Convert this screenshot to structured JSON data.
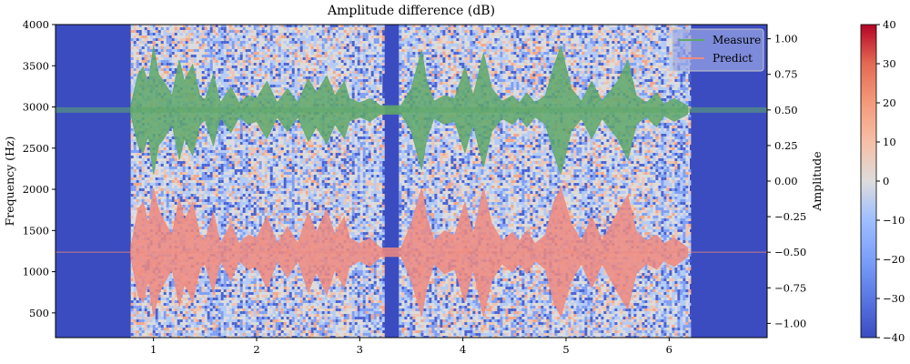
{
  "chart_data": {
    "type": "heatmap",
    "title": "Amplitude difference (dB)",
    "xlabel": "",
    "ylabel": "Frequency (Hz)",
    "y2label": "Amplitude",
    "xlim": [
      0.05,
      6.95
    ],
    "ylim": [
      200,
      4000
    ],
    "y2lim": [
      -1.1,
      1.1
    ],
    "x_ticks": [
      1,
      2,
      3,
      4,
      5,
      6
    ],
    "x_tick_labels": [
      "1",
      "2",
      "3",
      "4",
      "5",
      "6"
    ],
    "y_ticks": [
      500,
      1000,
      1500,
      2000,
      2500,
      3000,
      3500,
      4000
    ],
    "y_tick_labels": [
      "500",
      "1000",
      "1500",
      "2000",
      "2500",
      "3000",
      "3500",
      "4000"
    ],
    "y2_ticks": [
      1.0,
      0.75,
      0.5,
      0.25,
      0.0,
      -0.25,
      -0.5,
      -0.75,
      -1.0
    ],
    "y2_tick_labels": [
      "1.00",
      "0.75",
      "0.50",
      "0.25",
      "0.00",
      "−0.25",
      "−0.50",
      "−0.75",
      "−1.00"
    ],
    "colorbar": {
      "range": [
        -40,
        40
      ],
      "ticks": [
        40,
        30,
        20,
        10,
        0,
        -10,
        -20,
        -30,
        -40
      ],
      "tick_labels": [
        "40",
        "30",
        "20",
        "10",
        "0",
        "−10",
        "−20",
        "−30",
        "−40"
      ],
      "colormap": "coolwarm"
    },
    "silent_regions": [
      [
        0.05,
        0.78
      ],
      [
        3.22,
        3.38
      ],
      [
        6.2,
        6.95
      ]
    ],
    "speech_regions": [
      [
        0.78,
        3.22
      ],
      [
        3.38,
        6.2
      ]
    ],
    "series": [
      {
        "name": "Measure",
        "color": "#5fa86a",
        "offset": 0.5,
        "envelope": [
          [
            0.78,
            0.03
          ],
          [
            0.85,
            0.25
          ],
          [
            0.9,
            0.3
          ],
          [
            0.95,
            0.18
          ],
          [
            1.0,
            0.45
          ],
          [
            1.05,
            0.25
          ],
          [
            1.1,
            0.2
          ],
          [
            1.18,
            0.1
          ],
          [
            1.25,
            0.35
          ],
          [
            1.3,
            0.2
          ],
          [
            1.38,
            0.32
          ],
          [
            1.45,
            0.1
          ],
          [
            1.5,
            0.07
          ],
          [
            1.58,
            0.25
          ],
          [
            1.65,
            0.05
          ],
          [
            1.75,
            0.16
          ],
          [
            1.83,
            0.05
          ],
          [
            1.92,
            0.1
          ],
          [
            2.0,
            0.08
          ],
          [
            2.1,
            0.2
          ],
          [
            2.2,
            0.05
          ],
          [
            2.3,
            0.15
          ],
          [
            2.4,
            0.05
          ],
          [
            2.5,
            0.22
          ],
          [
            2.58,
            0.12
          ],
          [
            2.68,
            0.24
          ],
          [
            2.76,
            0.1
          ],
          [
            2.85,
            0.2
          ],
          [
            2.9,
            0.08
          ],
          [
            3.0,
            0.05
          ],
          [
            3.1,
            0.08
          ],
          [
            3.2,
            0.03
          ],
          [
            3.4,
            0.03
          ],
          [
            3.5,
            0.15
          ],
          [
            3.6,
            0.42
          ],
          [
            3.65,
            0.2
          ],
          [
            3.72,
            0.06
          ],
          [
            3.82,
            0.1
          ],
          [
            3.92,
            0.08
          ],
          [
            4.02,
            0.3
          ],
          [
            4.1,
            0.1
          ],
          [
            4.2,
            0.4
          ],
          [
            4.28,
            0.15
          ],
          [
            4.38,
            0.06
          ],
          [
            4.48,
            0.1
          ],
          [
            4.55,
            0.05
          ],
          [
            4.62,
            0.12
          ],
          [
            4.7,
            0.05
          ],
          [
            4.8,
            0.1
          ],
          [
            4.88,
            0.3
          ],
          [
            4.95,
            0.45
          ],
          [
            5.05,
            0.15
          ],
          [
            5.15,
            0.06
          ],
          [
            5.25,
            0.2
          ],
          [
            5.35,
            0.06
          ],
          [
            5.5,
            0.2
          ],
          [
            5.6,
            0.35
          ],
          [
            5.68,
            0.1
          ],
          [
            5.78,
            0.05
          ],
          [
            5.88,
            0.12
          ],
          [
            5.95,
            0.04
          ],
          [
            6.05,
            0.08
          ],
          [
            6.18,
            0.03
          ]
        ]
      },
      {
        "name": "Predict",
        "color": "#ee8a80",
        "offset": -0.5,
        "envelope": [
          [
            0.78,
            0.03
          ],
          [
            0.85,
            0.3
          ],
          [
            0.9,
            0.35
          ],
          [
            0.95,
            0.2
          ],
          [
            1.0,
            0.45
          ],
          [
            1.05,
            0.3
          ],
          [
            1.1,
            0.22
          ],
          [
            1.18,
            0.12
          ],
          [
            1.25,
            0.38
          ],
          [
            1.3,
            0.22
          ],
          [
            1.38,
            0.35
          ],
          [
            1.45,
            0.12
          ],
          [
            1.5,
            0.08
          ],
          [
            1.58,
            0.28
          ],
          [
            1.65,
            0.06
          ],
          [
            1.75,
            0.2
          ],
          [
            1.83,
            0.06
          ],
          [
            1.92,
            0.12
          ],
          [
            2.0,
            0.1
          ],
          [
            2.1,
            0.25
          ],
          [
            2.2,
            0.06
          ],
          [
            2.3,
            0.18
          ],
          [
            2.4,
            0.06
          ],
          [
            2.5,
            0.28
          ],
          [
            2.58,
            0.14
          ],
          [
            2.68,
            0.3
          ],
          [
            2.76,
            0.12
          ],
          [
            2.85,
            0.25
          ],
          [
            2.9,
            0.1
          ],
          [
            3.0,
            0.06
          ],
          [
            3.1,
            0.1
          ],
          [
            3.2,
            0.03
          ],
          [
            3.4,
            0.03
          ],
          [
            3.5,
            0.2
          ],
          [
            3.6,
            0.45
          ],
          [
            3.65,
            0.25
          ],
          [
            3.72,
            0.08
          ],
          [
            3.82,
            0.15
          ],
          [
            3.92,
            0.12
          ],
          [
            4.02,
            0.35
          ],
          [
            4.1,
            0.12
          ],
          [
            4.2,
            0.45
          ],
          [
            4.28,
            0.2
          ],
          [
            4.38,
            0.08
          ],
          [
            4.48,
            0.14
          ],
          [
            4.55,
            0.08
          ],
          [
            4.62,
            0.15
          ],
          [
            4.7,
            0.06
          ],
          [
            4.8,
            0.12
          ],
          [
            4.88,
            0.35
          ],
          [
            4.95,
            0.45
          ],
          [
            5.05,
            0.2
          ],
          [
            5.15,
            0.08
          ],
          [
            5.25,
            0.25
          ],
          [
            5.35,
            0.08
          ],
          [
            5.5,
            0.28
          ],
          [
            5.6,
            0.4
          ],
          [
            5.68,
            0.15
          ],
          [
            5.78,
            0.08
          ],
          [
            5.88,
            0.12
          ],
          [
            5.95,
            0.06
          ],
          [
            6.05,
            0.1
          ],
          [
            6.18,
            0.03
          ]
        ]
      }
    ],
    "legend": {
      "placement": "upper-right",
      "entries": [
        {
          "label": "Measure",
          "color": "#5fa86a"
        },
        {
          "label": "Predict",
          "color": "#ee8a80"
        }
      ]
    }
  }
}
